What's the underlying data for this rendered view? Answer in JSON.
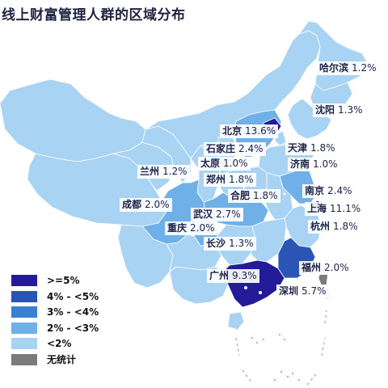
{
  "title": "线上财富管理人群的区域分布",
  "colors": {
    "ge5": "#231b9a",
    "4to5": "#2a55b5",
    "3to4": "#3a7fd0",
    "2to3": "#6fb0e8",
    "lt2": "#a9d3f3",
    "none": "#7b7b7b"
  },
  "legend": [
    {
      "label": ">=5%",
      "color": "#231b9a"
    },
    {
      "label": "4% - <5%",
      "color": "#2a55b5"
    },
    {
      "label": "3% - <4%",
      "color": "#3a7fd0"
    },
    {
      "label": "2% - <3%",
      "color": "#6fb0e8"
    },
    {
      "label": "<2%",
      "color": "#a9d3f3"
    },
    {
      "label": "无统计",
      "color": "#7b7b7b"
    }
  ],
  "cities": [
    {
      "name": "哈尔滨",
      "value": "1.2%"
    },
    {
      "name": "沈阳",
      "value": "1.3%"
    },
    {
      "name": "北京",
      "value": "13.6%"
    },
    {
      "name": "天津",
      "value": "1.8%"
    },
    {
      "name": "石家庄",
      "value": "2.4%"
    },
    {
      "name": "太原",
      "value": "1.0%"
    },
    {
      "name": "济南",
      "value": "1.0%"
    },
    {
      "name": "兰州",
      "value": "1.2%"
    },
    {
      "name": "郑州",
      "value": "1.8%"
    },
    {
      "name": "合肥",
      "value": "1.8%"
    },
    {
      "name": "南京",
      "value": "2.4%"
    },
    {
      "name": "成都",
      "value": "2.0%"
    },
    {
      "name": "武汉",
      "value": "2.7%"
    },
    {
      "name": "上海",
      "value": "11.1%"
    },
    {
      "name": "重庆",
      "value": "2.0%"
    },
    {
      "name": "杭州",
      "value": "1.8%"
    },
    {
      "name": "长沙",
      "value": "1.3%"
    },
    {
      "name": "福州",
      "value": "2.0%"
    },
    {
      "name": "广州",
      "value": "9.3%"
    },
    {
      "name": "深圳",
      "value": "5.7%"
    }
  ]
}
